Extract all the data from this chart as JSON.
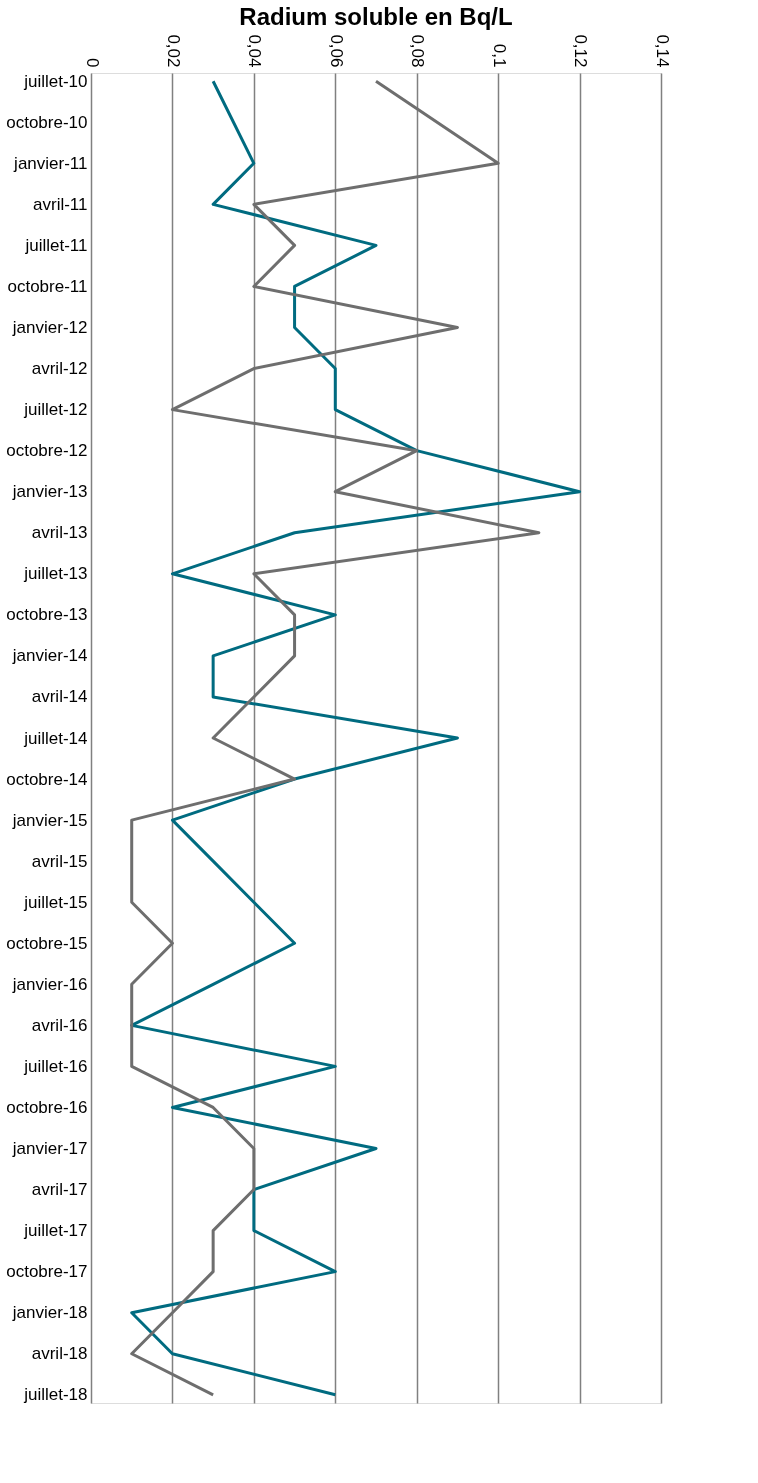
{
  "chart_data": {
    "type": "line",
    "orientation": "horizontal",
    "xlabel": "Radium soluble en Bq/L",
    "categories": [
      "juillet-10",
      "octobre-10",
      "janvier-11",
      "avril-11",
      "juillet-11",
      "octobre-11",
      "janvier-12",
      "avril-12",
      "juillet-12",
      "octobre-12",
      "janvier-13",
      "avril-13",
      "juillet-13",
      "octobre-13",
      "janvier-14",
      "avril-14",
      "juillet-14",
      "octobre-14",
      "janvier-15",
      "avril-15",
      "juillet-15",
      "octobre-15",
      "janvier-16",
      "avril-16",
      "juillet-16",
      "octobre-16",
      "janvier-17",
      "avril-17",
      "juillet-17",
      "octobre-17",
      "janvier-18",
      "avril-18",
      "juillet-18"
    ],
    "series": [
      {
        "color": "#006b80",
        "values": [
          0.03,
          null,
          0.04,
          0.03,
          0.07,
          0.05,
          0.05,
          0.06,
          0.06,
          0.08,
          0.12,
          0.05,
          0.02,
          0.06,
          0.03,
          0.03,
          0.09,
          0.05,
          0.02,
          0.03,
          0.04,
          0.05,
          0.03,
          0.01,
          0.06,
          0.02,
          0.07,
          0.04,
          0.04,
          0.06,
          0.01,
          0.02,
          0.06
        ]
      },
      {
        "color": "#6e6e6e",
        "values": [
          0.07,
          null,
          0.1,
          0.04,
          0.05,
          0.04,
          0.09,
          0.04,
          0.02,
          0.08,
          0.06,
          0.11,
          0.04,
          0.05,
          0.05,
          0.04,
          0.03,
          0.05,
          0.01,
          0.01,
          0.01,
          0.02,
          0.01,
          0.01,
          0.01,
          0.03,
          0.04,
          0.04,
          0.03,
          0.03,
          0.02,
          0.01,
          0.03
        ]
      }
    ],
    "xlim": [
      0,
      0.14
    ],
    "xticks": [
      0,
      {
        "value": 0.02,
        "label": "0,02"
      },
      {
        "value": 0.04,
        "label": "0,04"
      },
      {
        "value": 0.06,
        "label": "0,06"
      },
      {
        "value": 0.08,
        "label": "0,08"
      },
      {
        "value": 0.1,
        "label": "0,1"
      },
      {
        "value": 0.12,
        "label": "0,12"
      },
      {
        "value": 0.14,
        "label": "0,14"
      }
    ],
    "grid": "x",
    "marker": "none",
    "line_style": "solid"
  }
}
